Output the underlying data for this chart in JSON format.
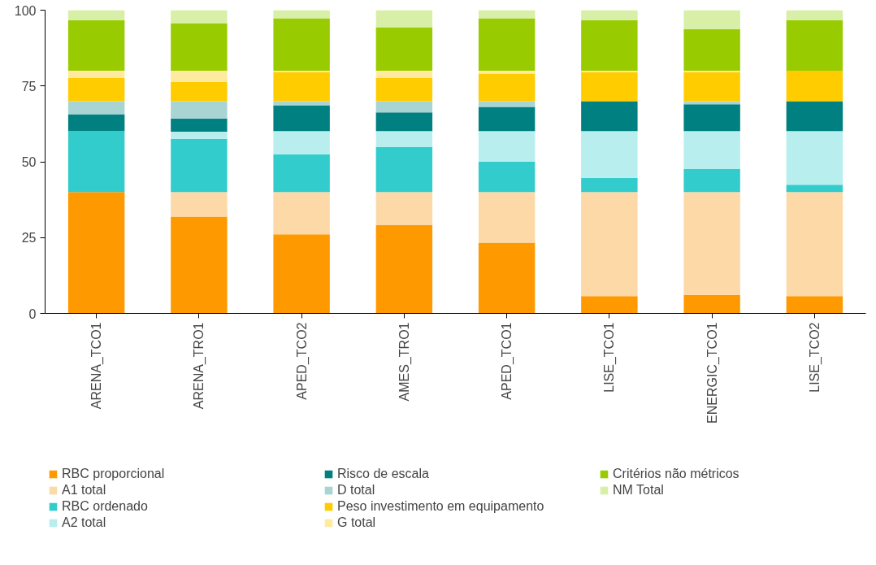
{
  "chart_data": {
    "type": "bar",
    "stacked": true,
    "categories": [
      "ARENA_TCO1",
      "ARENA_TRO1",
      "APED_TCO2",
      "AMES_TRO1",
      "APED_TCO1",
      "LISE_TCO1",
      "ENERGIC_TCO1",
      "LISE_TCO2"
    ],
    "series": [
      {
        "name": "RBC proporcional",
        "color": "#ff9900",
        "values": [
          40.0,
          31.9,
          26.1,
          29.1,
          23.3,
          5.7,
          6.1,
          5.7
        ]
      },
      {
        "name": "A1 total",
        "color": "#fdd9a8",
        "values": [
          0,
          8.1,
          13.9,
          10.9,
          16.7,
          34.3,
          33.9,
          34.3
        ]
      },
      {
        "name": "RBC ordenado",
        "color": "#33cccc",
        "values": [
          20.1,
          17.6,
          12.5,
          14.8,
          10.0,
          4.7,
          7.6,
          2.4
        ]
      },
      {
        "name": "A2 total",
        "color": "#b8eeee",
        "values": [
          0,
          2.3,
          7.6,
          5.3,
          10.1,
          15.4,
          12.5,
          17.7
        ]
      },
      {
        "name": "Risco de escala",
        "color": "#008080",
        "values": [
          5.6,
          4.4,
          8.5,
          6.2,
          8.0,
          9.9,
          8.9,
          9.9
        ]
      },
      {
        "name": "D total",
        "color": "#a8d4d4",
        "values": [
          4.3,
          5.7,
          1.4,
          3.7,
          1.9,
          0,
          1.0,
          0
        ]
      },
      {
        "name": "Peso investimento em equipamento",
        "color": "#ffcc00",
        "values": [
          7.6,
          6.3,
          9.6,
          7.6,
          9.1,
          9.6,
          9.6,
          10.0
        ]
      },
      {
        "name": "G total",
        "color": "#ffeaa0",
        "values": [
          2.4,
          3.7,
          0.4,
          2.4,
          0.9,
          0.4,
          0.4,
          0
        ]
      },
      {
        "name": "Critérios não métricos",
        "color": "#99cc00",
        "values": [
          16.7,
          15.7,
          17.3,
          14.4,
          17.3,
          16.7,
          13.8,
          16.7
        ]
      },
      {
        "name": "NM Total",
        "color": "#d8efa8",
        "values": [
          3.3,
          4.3,
          2.7,
          5.6,
          2.7,
          3.3,
          6.2,
          3.3
        ]
      }
    ],
    "ylim": [
      0,
      100
    ],
    "yticks": [
      0,
      25,
      50,
      75,
      100
    ],
    "grid": false,
    "legend": "bottom"
  }
}
